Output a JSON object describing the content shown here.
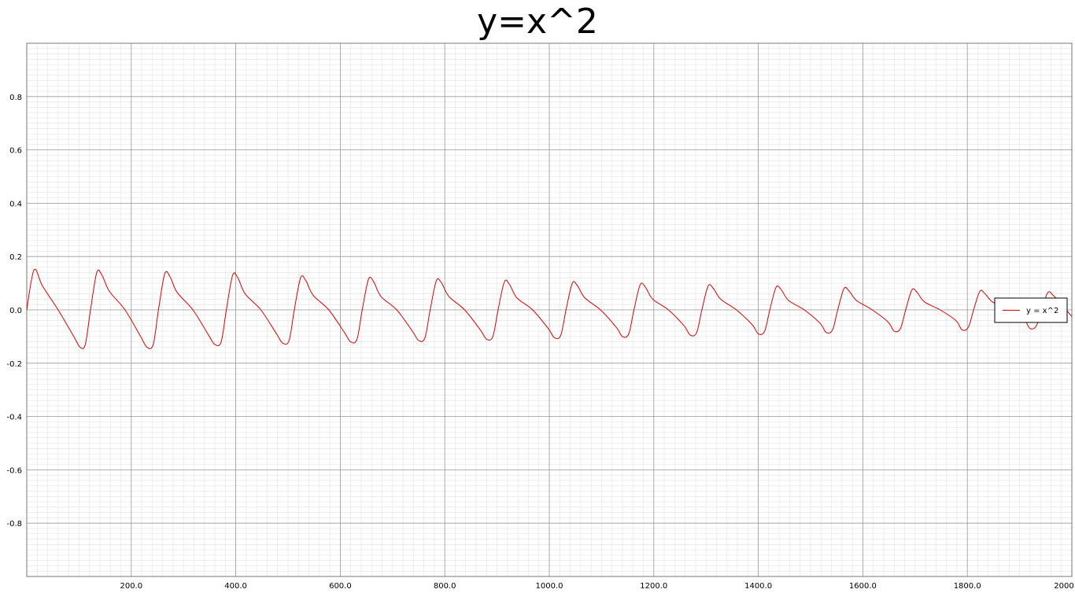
{
  "chart_data": {
    "type": "line",
    "title": "y=x^2",
    "xlabel": "",
    "ylabel": "",
    "xlim": [
      0,
      2000
    ],
    "ylim": [
      -1.0,
      1.0
    ],
    "x_ticks": [
      200,
      400,
      600,
      800,
      1000,
      1200,
      1400,
      1600,
      1800,
      2000
    ],
    "x_tick_labels": [
      "200.0",
      "400.0",
      "600.0",
      "800.0",
      "1000.0",
      "1200.0",
      "1400.0",
      "1600.0",
      "1800.0",
      "2000"
    ],
    "y_ticks": [
      0.8,
      0.6,
      0.4,
      0.2,
      0.0,
      -0.2,
      -0.4,
      -0.6,
      -0.8
    ],
    "y_tick_labels": [
      "0.8",
      "0.6",
      "0.4",
      "0.2",
      "0.0",
      "-0.2",
      "-0.4",
      "-0.6",
      "-0.8"
    ],
    "grid": true,
    "minor_grid": true,
    "legend_position": "right",
    "series": [
      {
        "name": "y = x^2",
        "color": "#e00000",
        "x": [
          0,
          14,
          30,
          60,
          90,
          102,
          112,
          122,
          134,
          144,
          158,
          188,
          218,
          230,
          242,
          252,
          264,
          274,
          288,
          318,
          348,
          360,
          372,
          382,
          394,
          404,
          418,
          448,
          478,
          490,
          502,
          512,
          524,
          534,
          548,
          578,
          608,
          620,
          632,
          642,
          654,
          664,
          678,
          708,
          738,
          750,
          762,
          772,
          784,
          794,
          808,
          838,
          868,
          880,
          892,
          902,
          914,
          924,
          938,
          968,
          998,
          1010,
          1022,
          1032,
          1044,
          1054,
          1068,
          1098,
          1128,
          1140,
          1152,
          1162,
          1174,
          1184,
          1198,
          1228,
          1258,
          1270,
          1282,
          1292,
          1304,
          1314,
          1328,
          1358,
          1388,
          1400,
          1412,
          1422,
          1434,
          1444,
          1458,
          1488,
          1518,
          1530,
          1542,
          1552,
          1564,
          1574,
          1588,
          1618,
          1648,
          1660,
          1672,
          1682,
          1694,
          1704,
          1718,
          1748,
          1778,
          1790,
          1802,
          1812,
          1824,
          1834,
          1848,
          1878,
          1908,
          1920,
          1932,
          1942,
          1954,
          1964,
          1978,
          2000
        ],
        "y": [
          0.0,
          0.15,
          0.09,
          0.0,
          -0.1,
          -0.14,
          -0.13,
          0.0,
          0.14,
          0.13,
          0.07,
          0.0,
          -0.1,
          -0.14,
          -0.13,
          0.0,
          0.135,
          0.125,
          0.065,
          0.0,
          -0.095,
          -0.13,
          -0.12,
          0.0,
          0.13,
          0.12,
          0.06,
          0.0,
          -0.09,
          -0.125,
          -0.115,
          0.0,
          0.12,
          0.11,
          0.055,
          0.0,
          -0.085,
          -0.12,
          -0.11,
          0.0,
          0.115,
          0.105,
          0.05,
          0.0,
          -0.08,
          -0.115,
          -0.105,
          0.0,
          0.11,
          0.1,
          0.05,
          0.0,
          -0.075,
          -0.11,
          -0.1,
          0.0,
          0.105,
          0.095,
          0.045,
          0.0,
          -0.07,
          -0.105,
          -0.095,
          0.0,
          0.1,
          0.09,
          0.045,
          0.0,
          -0.065,
          -0.1,
          -0.09,
          0.0,
          0.095,
          0.085,
          0.04,
          0.0,
          -0.06,
          -0.095,
          -0.085,
          0.0,
          0.09,
          0.08,
          0.04,
          0.0,
          -0.055,
          -0.09,
          -0.08,
          0.0,
          0.085,
          0.075,
          0.035,
          0.0,
          -0.05,
          -0.085,
          -0.075,
          0.0,
          0.08,
          0.07,
          0.035,
          0.0,
          -0.045,
          -0.08,
          -0.07,
          0.0,
          0.075,
          0.065,
          0.03,
          0.0,
          -0.04,
          -0.075,
          -0.065,
          0.0,
          0.07,
          0.06,
          0.03,
          0.0,
          -0.035,
          -0.07,
          -0.06,
          0.0,
          0.065,
          0.055,
          0.025,
          -0.025
        ]
      }
    ]
  }
}
